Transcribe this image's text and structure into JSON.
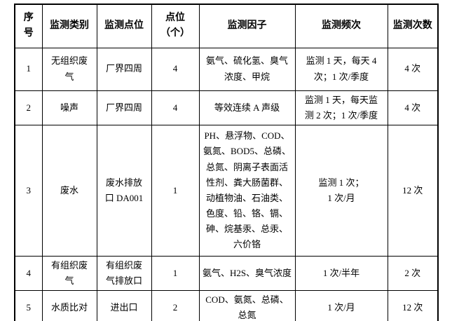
{
  "table": {
    "headers": {
      "no": "序\n号",
      "category": "监测类别",
      "location": "监测点位",
      "points": "点位\n（个）",
      "factors": "监测因子",
      "frequency": "监测频次",
      "times": "监测次数"
    },
    "rows": [
      {
        "no": "1",
        "category": "无组织废\n气",
        "location": "厂界四周",
        "points": "4",
        "factors": "氨气、硫化氢、臭气\n浓度、甲烷",
        "frequency": "监测 1 天，每天 4\n次；1 次/季度",
        "times": "4 次"
      },
      {
        "no": "2",
        "category": "噪声",
        "location": "厂界四周",
        "points": "4",
        "factors": "等效连续 A 声级",
        "frequency": "监测 1 天，每天监\n测 2 次；1 次/季度",
        "times": "4 次"
      },
      {
        "no": "3",
        "category": "废水",
        "location": "废水排放\n口 DA001",
        "points": "1",
        "factors": "PH、悬浮物、COD、\n氨氮、BOD5、总磷、\n总氮、阴离子表面活\n性剂、粪大肠菌群、\n动植物油、石油类、\n色度、铅、铬、镉、\n砷、烷基汞、总汞、\n六价铬",
        "frequency": "监测 1 次；\n1 次/月",
        "times": "12 次"
      },
      {
        "no": "4",
        "category": "有组织废\n气",
        "location": "有组织废\n气排放口",
        "points": "1",
        "factors": "氨气、H2S、臭气浓度",
        "frequency": "1 次/半年",
        "times": "2 次"
      },
      {
        "no": "5",
        "category": "水质比对",
        "location": "进出口",
        "points": "2",
        "factors": "COD、氨氮、总磷、\n总氮",
        "frequency": "1 次/月",
        "times": "12 次"
      }
    ]
  }
}
